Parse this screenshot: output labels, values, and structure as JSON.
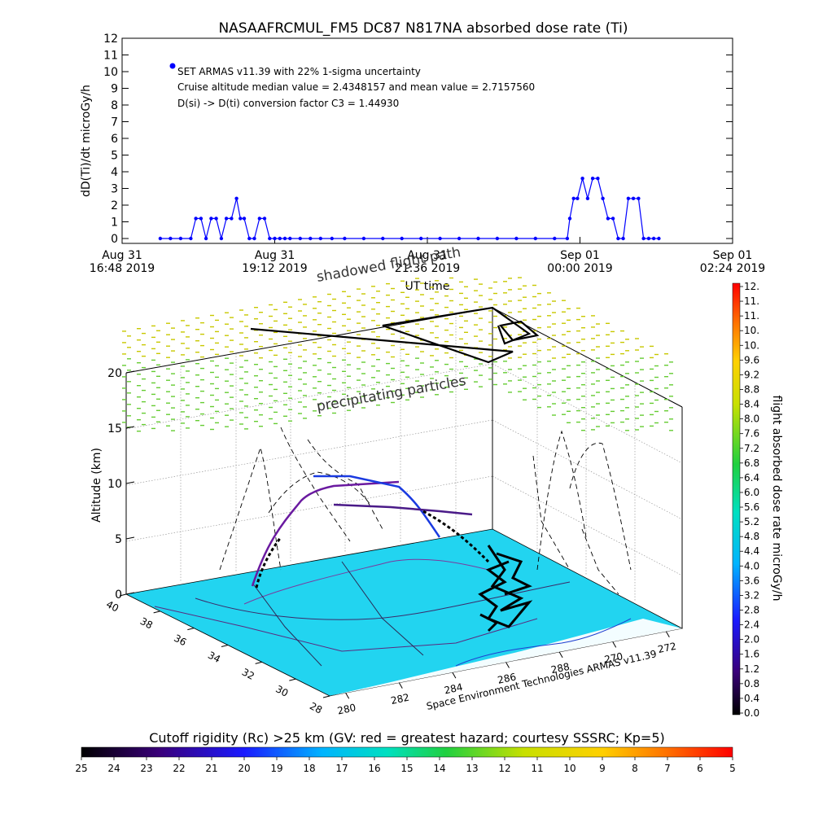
{
  "chart_data": [
    {
      "type": "line",
      "title": "NASAAFRCMUL_FM5 DC87 N817NA absorbed dose rate (Ti)",
      "xlabel": "UT time",
      "ylabel": "dD(Ti)/dt microGy/h",
      "ylim": [
        0,
        12
      ],
      "yticks": [
        "0",
        "1",
        "2",
        "3",
        "4",
        "5",
        "6",
        "7",
        "8",
        "9",
        "10",
        "11",
        "12"
      ],
      "xticks": [
        {
          "date": "Aug 31",
          "time": "16:48 2019"
        },
        {
          "date": "Aug 31",
          "time": "19:12 2019"
        },
        {
          "date": "Aug 31",
          "time": "21:36 2019"
        },
        {
          "date": "Sep 01",
          "time": "00:00 2019"
        },
        {
          "date": "Sep 01",
          "time": "02:24 2019"
        }
      ],
      "xlim_hours_ut": [
        16.8,
        26.4
      ],
      "legend": {
        "marker_color": "#0000ff",
        "line1": "SET ARMAS v11.39 with 22% 1-sigma uncertainty",
        "line2": "Cruise altitude median value = 2.4348157 and mean value = 2.7157560",
        "line3": "D(si) -> D(ti) conversion factor C3 = 1.44930"
      },
      "series": [
        {
          "color": "#0000ff",
          "x_hours_ut": [
            17.4,
            17.56,
            17.72,
            17.88,
            17.96,
            18.04,
            18.12,
            18.2,
            18.28,
            18.36,
            18.44,
            18.52,
            18.6,
            18.66,
            18.72,
            18.8,
            18.88,
            18.96,
            19.04,
            19.12,
            19.2,
            19.28,
            19.36,
            19.44,
            19.6,
            19.76,
            19.92,
            20.1,
            20.3,
            20.6,
            20.9,
            21.2,
            21.5,
            21.8,
            22.1,
            22.4,
            22.7,
            23.0,
            23.3,
            23.6,
            23.8,
            23.84,
            23.9,
            23.96,
            24.04,
            24.12,
            24.2,
            24.28,
            24.36,
            24.44,
            24.52,
            24.6,
            24.68,
            24.76,
            24.84,
            24.92,
            25.0,
            25.08,
            25.16,
            25.24
          ],
          "values": [
            0,
            0,
            0,
            0,
            1.2,
            1.2,
            0,
            1.2,
            1.2,
            0,
            1.2,
            1.2,
            2.4,
            1.2,
            1.2,
            0,
            0,
            1.2,
            1.2,
            0,
            0,
            0,
            0,
            0,
            0,
            0,
            0,
            0,
            0,
            0,
            0,
            0,
            0,
            0,
            0,
            0,
            0,
            0,
            0,
            0,
            0,
            1.2,
            2.4,
            2.4,
            3.6,
            2.4,
            3.6,
            3.6,
            2.4,
            1.2,
            1.2,
            0,
            0,
            2.4,
            2.4,
            2.4,
            0,
            0,
            0,
            0
          ]
        }
      ]
    },
    {
      "type": "scatter",
      "zlabel": "Altitude (km)",
      "zlim": [
        0,
        20
      ],
      "zticks": [
        "0",
        "5",
        "10",
        "15",
        "20"
      ],
      "lat_ticks": [
        "40",
        "38",
        "36",
        "34",
        "32",
        "30",
        "28"
      ],
      "lon_ticks": [
        "280",
        "282",
        "284",
        "286",
        "288",
        "270",
        "272"
      ],
      "annotations": [
        "shadowed flight path",
        "precipitating particles"
      ],
      "credit": "Space Environment Technologies ARMAS v11.39",
      "colorbar": {
        "label": "flight absorbed dose rate microGy/h",
        "range": [
          0.0,
          12.0
        ],
        "ticks": [
          "12.",
          "11.",
          "11.",
          "10.",
          "10.",
          "9.6",
          "9.2",
          "8.8",
          "8.4",
          "8.0",
          "7.6",
          "7.2",
          "6.8",
          "6.4",
          "6.0",
          "5.6",
          "5.2",
          "4.8",
          "4.4",
          "4.0",
          "3.6",
          "3.2",
          "2.8",
          "2.4",
          "2.0",
          "1.6",
          "1.2",
          "0.8",
          "0.4",
          "0.0"
        ]
      },
      "rigidity_bar": {
        "label": "Cutoff rigidity (Rc) >25 km (GV: red = greatest hazard; courtesy SSSRC; Kp=5)",
        "ticks": [
          "25",
          "24",
          "23",
          "22",
          "21",
          "20",
          "19",
          "18",
          "17",
          "16",
          "15",
          "14",
          "13",
          "12",
          "11",
          "10",
          "9",
          "8",
          "7",
          "6",
          "5"
        ],
        "range": [
          25,
          5
        ]
      },
      "surface_color": "#22d4f0"
    }
  ]
}
